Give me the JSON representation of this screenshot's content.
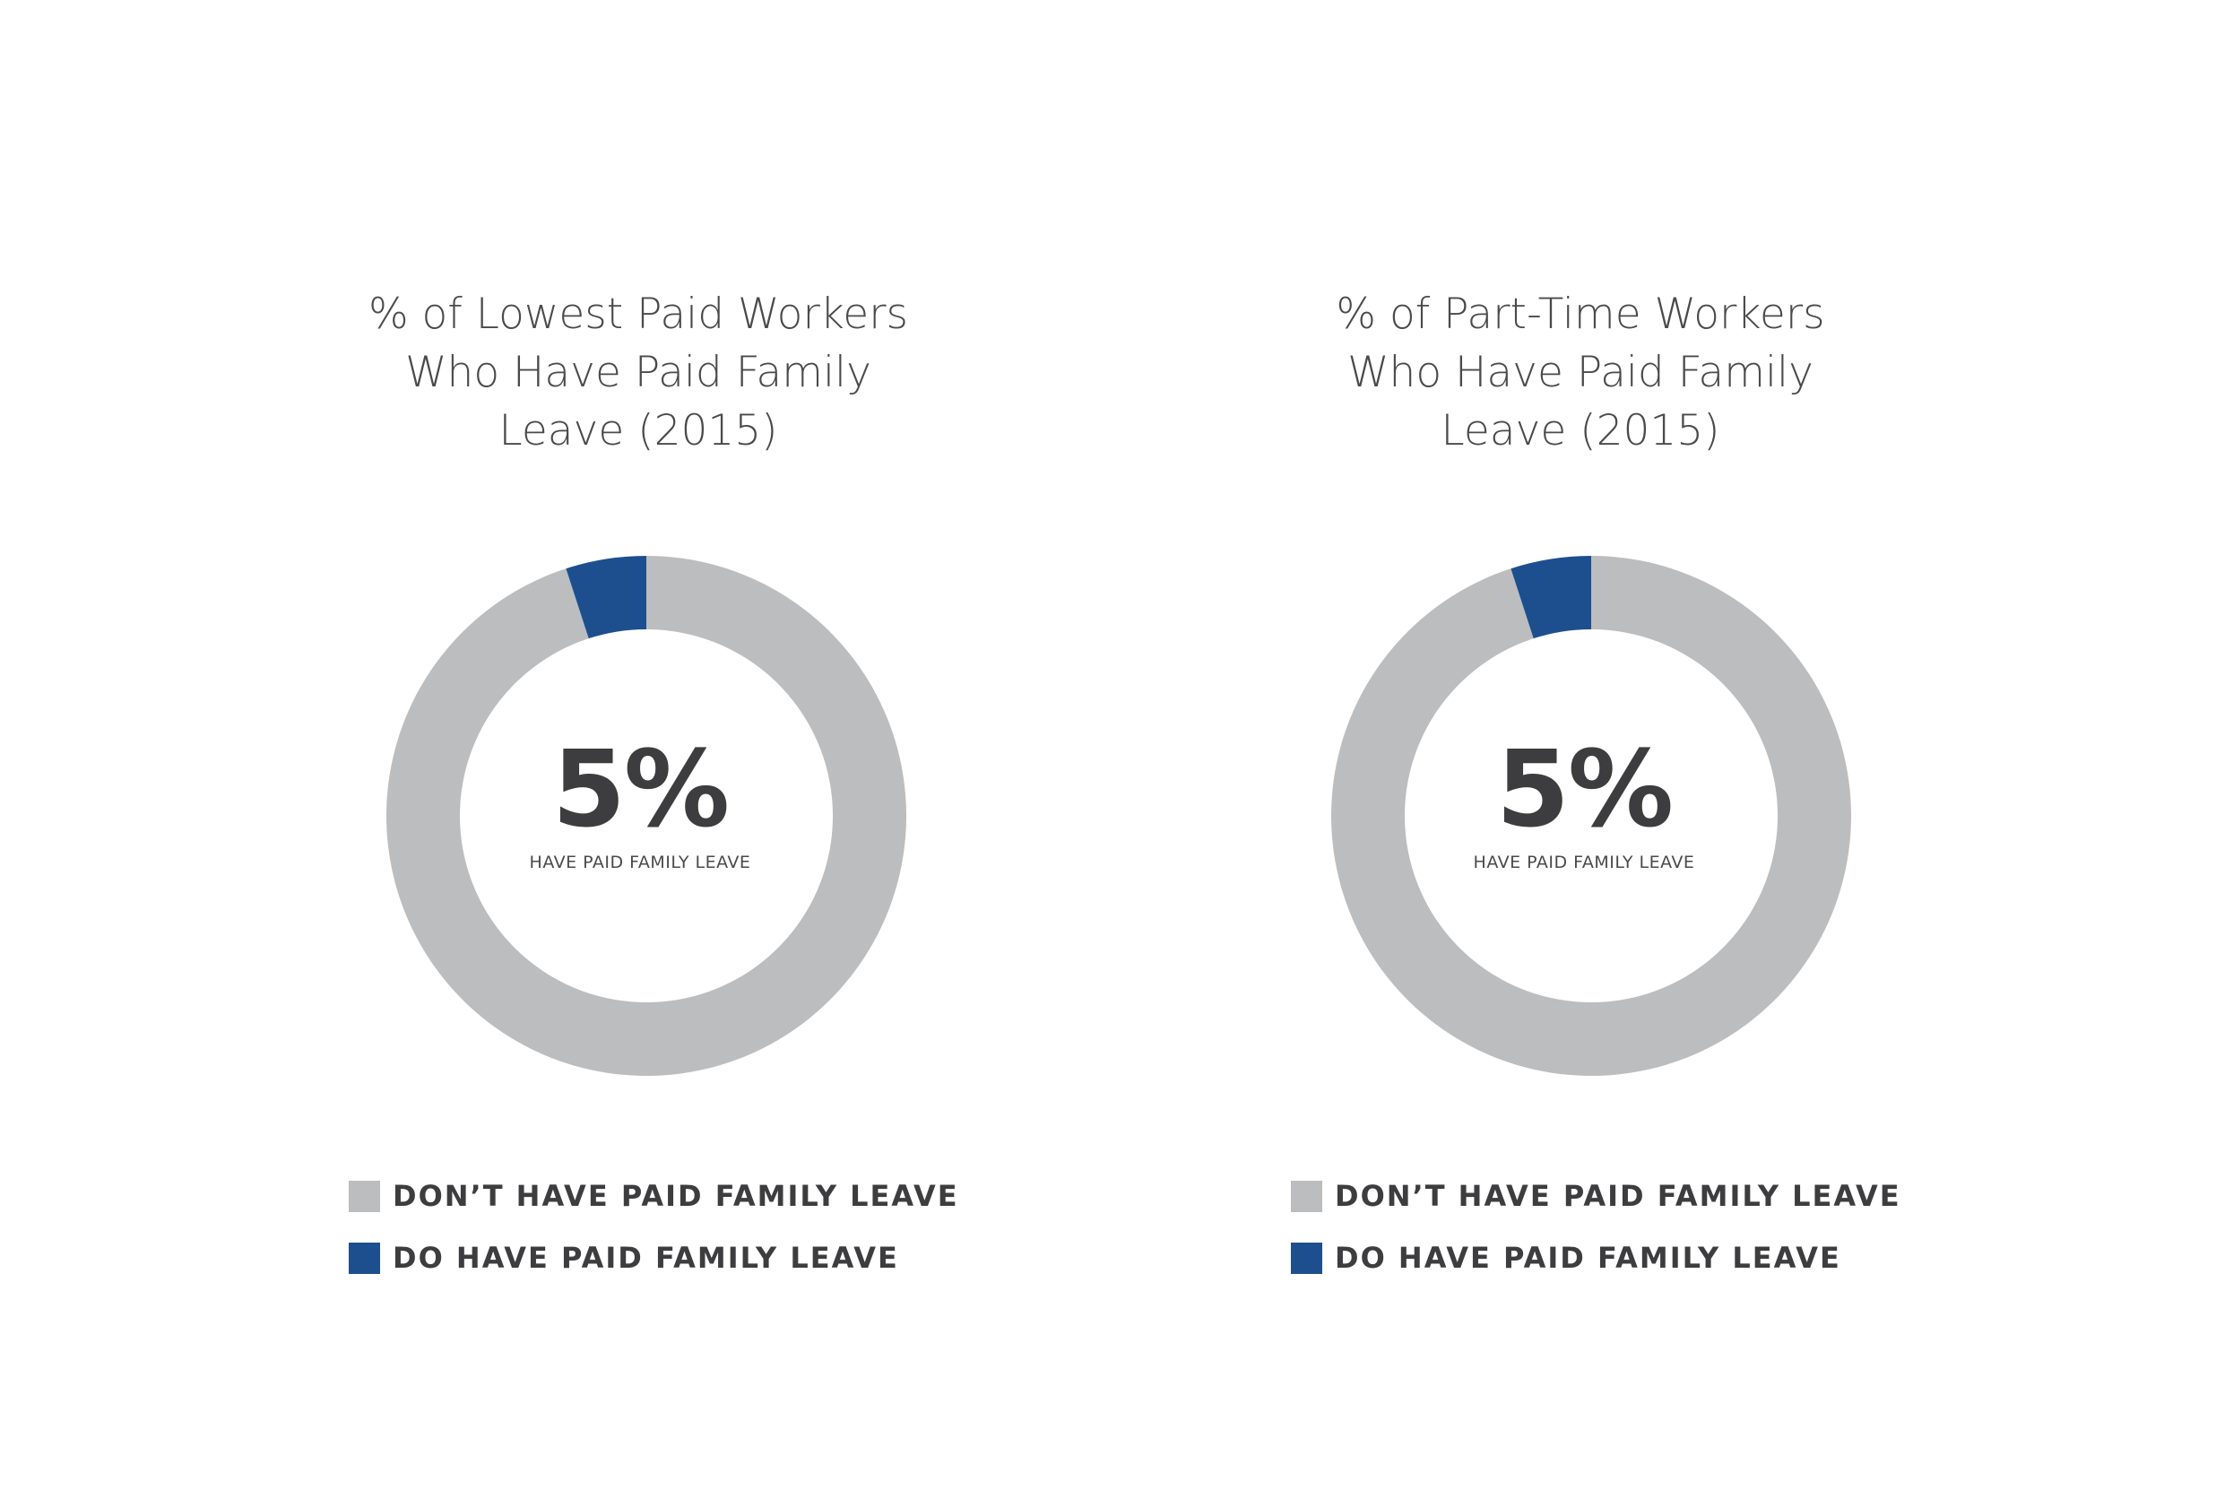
{
  "colors": {
    "dont_have": "#bcbdbf",
    "do_have": "#1d4f8f",
    "text_dark": "#3d3d3f"
  },
  "charts": [
    {
      "title_lines": [
        "% of Lowest Paid Workers",
        "Who Have Paid Family",
        "Leave (2015)"
      ],
      "center_value": "5%",
      "center_caption": "HAVE PAID FAMILY LEAVE",
      "legend": [
        {
          "label": "DON’T HAVE PAID FAMILY LEAVE",
          "color": "#bcbdbf"
        },
        {
          "label": "DO HAVE PAID FAMILY LEAVE",
          "color": "#1d4f8f"
        }
      ]
    },
    {
      "title_lines": [
        "% of Part-Time Workers",
        "Who Have Paid Family",
        "Leave (2015)"
      ],
      "center_value": "5%",
      "center_caption": "HAVE PAID FAMILY LEAVE",
      "legend": [
        {
          "label": "DON’T HAVE PAID FAMILY LEAVE",
          "color": "#bcbdbf"
        },
        {
          "label": "DO HAVE PAID FAMILY LEAVE",
          "color": "#1d4f8f"
        }
      ]
    }
  ],
  "chart_data": [
    {
      "type": "pie",
      "title": "% of Lowest Paid Workers Who Have Paid Family Leave (2015)",
      "categories": [
        "DON’T HAVE PAID FAMILY LEAVE",
        "DO HAVE PAID FAMILY LEAVE"
      ],
      "values": [
        95,
        5
      ],
      "colors": [
        "#bcbdbf",
        "#1d4f8f"
      ],
      "unit": "%",
      "donut": true
    },
    {
      "type": "pie",
      "title": "% of Part-Time Workers Who Have Paid Family Leave (2015)",
      "categories": [
        "DON’T HAVE PAID FAMILY LEAVE",
        "DO HAVE PAID FAMILY LEAVE"
      ],
      "values": [
        95,
        5
      ],
      "colors": [
        "#bcbdbf",
        "#1d4f8f"
      ],
      "unit": "%",
      "donut": true
    }
  ]
}
